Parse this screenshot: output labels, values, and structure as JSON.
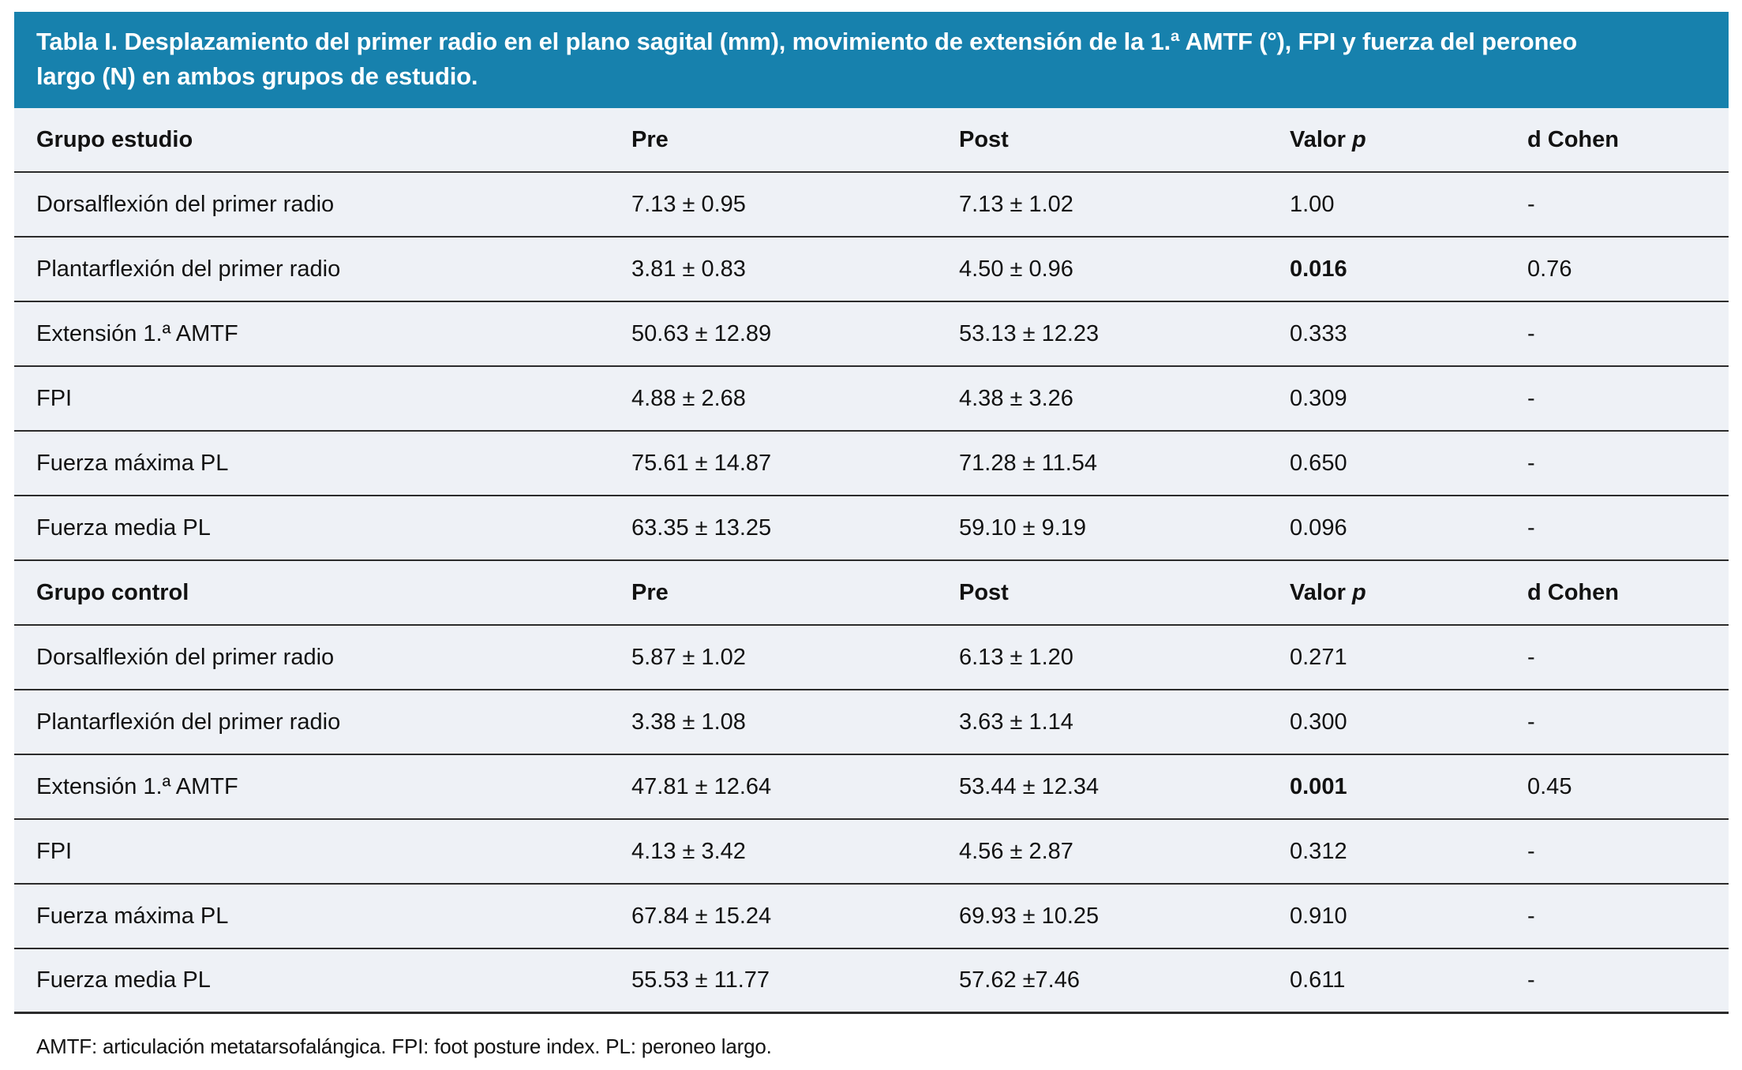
{
  "title": "Tabla I. Desplazamiento del primer radio en el plano sagital (mm), movimiento de extensión de la 1.ª AMTF (°), FPI y fuerza del peroneo largo (N) en ambos grupos de estudio.",
  "columns": {
    "pre": "Pre",
    "post": "Post",
    "valor": "Valor",
    "p": "p",
    "d_cohen": "d Cohen"
  },
  "sections": [
    {
      "group_label": "Grupo estudio",
      "rows": [
        {
          "label": "Dorsalflexión del primer radio",
          "pre": "7.13 ± 0.95",
          "post": "7.13 ± 1.02",
          "p": "1.00",
          "p_bold": false,
          "d": "-"
        },
        {
          "label": "Plantarflexión del primer radio",
          "pre": "3.81 ± 0.83",
          "post": "4.50 ± 0.96",
          "p": "0.016",
          "p_bold": true,
          "d": "0.76"
        },
        {
          "label": "Extensión 1.ª AMTF",
          "pre": "50.63 ± 12.89",
          "post": "53.13 ± 12.23",
          "p": "0.333",
          "p_bold": false,
          "d": "-"
        },
        {
          "label": "FPI",
          "pre": "4.88 ± 2.68",
          "post": "4.38 ± 3.26",
          "p": "0.309",
          "p_bold": false,
          "d": "-"
        },
        {
          "label": "Fuerza máxima PL",
          "pre": "75.61 ± 14.87",
          "post": "71.28 ± 11.54",
          "p": "0.650",
          "p_bold": false,
          "d": "-"
        },
        {
          "label": "Fuerza media PL",
          "pre": "63.35 ± 13.25",
          "post": "59.10 ± 9.19",
          "p": "0.096",
          "p_bold": false,
          "d": "-"
        }
      ]
    },
    {
      "group_label": "Grupo control",
      "rows": [
        {
          "label": "Dorsalflexión del primer radio",
          "pre": "5.87 ± 1.02",
          "post": "6.13 ± 1.20",
          "p": "0.271",
          "p_bold": false,
          "d": "-"
        },
        {
          "label": "Plantarflexión del primer radio",
          "pre": "3.38 ± 1.08",
          "post": "3.63 ± 1.14",
          "p": "0.300",
          "p_bold": false,
          "d": "-"
        },
        {
          "label": "Extensión 1.ª AMTF",
          "pre": "47.81 ± 12.64",
          "post": "53.44 ± 12.34",
          "p": "0.001",
          "p_bold": true,
          "d": "0.45"
        },
        {
          "label": "FPI",
          "pre": "4.13 ± 3.42",
          "post": "4.56 ± 2.87",
          "p": "0.312",
          "p_bold": false,
          "d": "-"
        },
        {
          "label": "Fuerza máxima PL",
          "pre": "67.84 ± 15.24",
          "post": "69.93 ± 10.25",
          "p": "0.910",
          "p_bold": false,
          "d": "-"
        },
        {
          "label": "Fuerza media PL",
          "pre": "55.53 ± 11.77",
          "post": "57.62 ±7.46",
          "p": "0.611",
          "p_bold": false,
          "d": "-"
        }
      ]
    }
  ],
  "footnote": "AMTF: articulación metatarsofalángica. FPI: foot posture index. PL: peroneo largo.",
  "colors": {
    "header_bg": "#1781ad",
    "table_bg": "#eef1f6",
    "row_border": "#2b2b2b",
    "title_text": "#ffffff",
    "body_text": "#121212"
  }
}
